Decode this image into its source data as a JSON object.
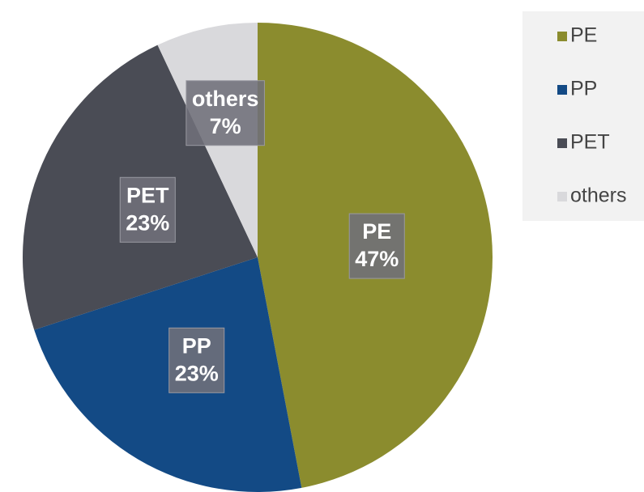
{
  "chart_data": {
    "type": "pie",
    "categories": [
      "PE",
      "PP",
      "PET",
      "others"
    ],
    "values": [
      47,
      23,
      23,
      7
    ],
    "value_labels": [
      "47%",
      "23%",
      "23%",
      "7%"
    ],
    "colors": [
      "#8b8c2e",
      "#134a85",
      "#4a4c55",
      "#d9d9dc"
    ],
    "legend": "right"
  }
}
